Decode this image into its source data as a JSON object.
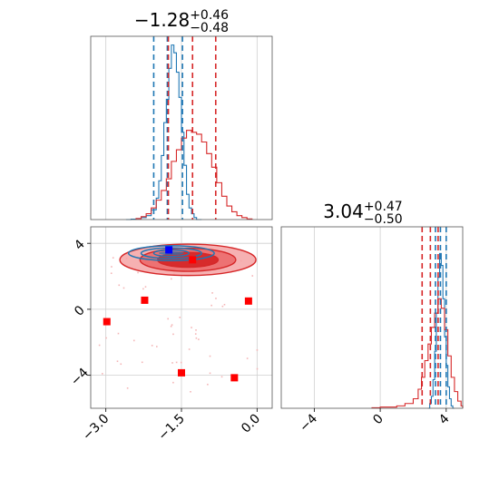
{
  "colors": {
    "blue": "#1f77b4",
    "red": "#d62728",
    "red_light": "#f4a3a4",
    "red_mid": "#ec6b6c",
    "grid": "#cfcfcf",
    "marker_red": "#ff0000",
    "marker_blue": "#0000ff"
  },
  "chart_data": [
    {
      "panel": "top-left",
      "type": "histogram",
      "title_main": "−1.28",
      "title_sup": "+0.46",
      "title_sub": "−0.48",
      "xlim": [
        -3.3,
        0.3
      ],
      "grid": true,
      "series": [
        {
          "color": "blue",
          "style": "step",
          "bins": [
            [
              -2.6,
              0.0
            ],
            [
              -2.5,
              0.2
            ],
            [
              -2.4,
              0.5
            ],
            [
              -2.3,
              1.0
            ],
            [
              -2.2,
              2.0
            ],
            [
              -2.1,
              5.0
            ],
            [
              -2.0,
              11.0
            ],
            [
              -1.95,
              20.0
            ],
            [
              -1.9,
              33.0
            ],
            [
              -1.85,
              50.0
            ],
            [
              -1.8,
              62.0
            ],
            [
              -1.75,
              78.0
            ],
            [
              -1.7,
              90.0
            ],
            [
              -1.65,
              86.0
            ],
            [
              -1.6,
              76.0
            ],
            [
              -1.55,
              63.0
            ],
            [
              -1.5,
              45.0
            ],
            [
              -1.45,
              28.0
            ],
            [
              -1.4,
              13.0
            ],
            [
              -1.35,
              6.0
            ],
            [
              -1.3,
              3.0
            ],
            [
              -1.25,
              1.0
            ],
            [
              -1.2,
              0.0
            ]
          ],
          "quantiles": [
            -2.05,
            -1.78,
            -1.48
          ]
        },
        {
          "color": "red",
          "style": "step",
          "bins": [
            [
              -2.4,
              0.5
            ],
            [
              -2.3,
              1.5
            ],
            [
              -2.2,
              3.0
            ],
            [
              -2.1,
              6.0
            ],
            [
              -2.0,
              10.0
            ],
            [
              -1.9,
              15.0
            ],
            [
              -1.8,
              21.0
            ],
            [
              -1.7,
              30.0
            ],
            [
              -1.6,
              36.0
            ],
            [
              -1.5,
              42.0
            ],
            [
              -1.4,
              46.0
            ],
            [
              -1.3,
              45.0
            ],
            [
              -1.2,
              44.0
            ],
            [
              -1.1,
              40.0
            ],
            [
              -1.0,
              34.0
            ],
            [
              -0.9,
              27.0
            ],
            [
              -0.8,
              19.0
            ],
            [
              -0.7,
              12.0
            ],
            [
              -0.6,
              7.0
            ],
            [
              -0.5,
              4.0
            ],
            [
              -0.4,
              2.0
            ],
            [
              -0.3,
              1.0
            ],
            [
              -0.2,
              0.3
            ]
          ],
          "quantiles": [
            -1.76,
            -1.28,
            -0.82
          ]
        }
      ]
    },
    {
      "panel": "bottom-left",
      "type": "scatter",
      "xlim": [
        -3.3,
        0.3
      ],
      "ylim": [
        -6.0,
        5.0
      ],
      "xticks": [
        "−3.0",
        "−1.5",
        "0.0"
      ],
      "xtick_values": [
        -3.0,
        -1.5,
        0.0
      ],
      "yticks": [
        "4",
        "0",
        "−4"
      ],
      "ytick_values": [
        4,
        0,
        -4
      ],
      "grid": true,
      "red_contour_center": [
        -1.3,
        3.0
      ],
      "blue_contour_center": [
        -1.7,
        3.4
      ],
      "red_markers": [
        [
          -2.98,
          -0.75
        ],
        [
          -2.23,
          0.55
        ],
        [
          -1.5,
          -3.85
        ],
        [
          -0.45,
          -4.15
        ],
        [
          -0.17,
          0.5
        ],
        [
          -1.28,
          3.0
        ]
      ],
      "blue_marker": [
        -1.75,
        3.6
      ]
    },
    {
      "panel": "bottom-right",
      "type": "histogram",
      "title_main": "3.04",
      "title_sup": "+0.47",
      "title_sub": "−0.50",
      "xlim": [
        -6.0,
        5.0
      ],
      "xticks": [
        "−4",
        "0",
        "4"
      ],
      "xtick_values": [
        -4,
        0,
        4
      ],
      "grid": true,
      "series": [
        {
          "color": "blue",
          "style": "step",
          "bins": [
            [
              2.9,
              0.0
            ],
            [
              3.0,
              2.0
            ],
            [
              3.1,
              5.0
            ],
            [
              3.2,
              12.0
            ],
            [
              3.3,
              24.0
            ],
            [
              3.4,
              40.0
            ],
            [
              3.5,
              55.0
            ],
            [
              3.6,
              65.0
            ],
            [
              3.7,
              60.0
            ],
            [
              3.8,
              46.0
            ],
            [
              3.9,
              30.0
            ],
            [
              4.0,
              18.0
            ],
            [
              4.1,
              9.0
            ],
            [
              4.2,
              4.0
            ],
            [
              4.3,
              1.0
            ],
            [
              4.4,
              0.0
            ]
          ],
          "quantiles": [
            3.35,
            3.65,
            4.0
          ]
        },
        {
          "color": "red",
          "style": "step",
          "bins": [
            [
              -0.5,
              0.2
            ],
            [
              0.0,
              0.5
            ],
            [
              0.5,
              0.5
            ],
            [
              1.0,
              1.0
            ],
            [
              1.5,
              2.0
            ],
            [
              2.0,
              4.0
            ],
            [
              2.3,
              8.0
            ],
            [
              2.5,
              13.0
            ],
            [
              2.7,
              20.0
            ],
            [
              2.9,
              27.0
            ],
            [
              3.1,
              34.0
            ],
            [
              3.3,
              40.0
            ],
            [
              3.5,
              46.0
            ],
            [
              3.7,
              42.0
            ],
            [
              3.9,
              33.0
            ],
            [
              4.1,
              22.0
            ],
            [
              4.3,
              13.0
            ],
            [
              4.5,
              7.0
            ],
            [
              4.7,
              3.0
            ],
            [
              4.9,
              1.0
            ]
          ],
          "quantiles": [
            2.54,
            3.04,
            3.51
          ]
        }
      ]
    }
  ]
}
